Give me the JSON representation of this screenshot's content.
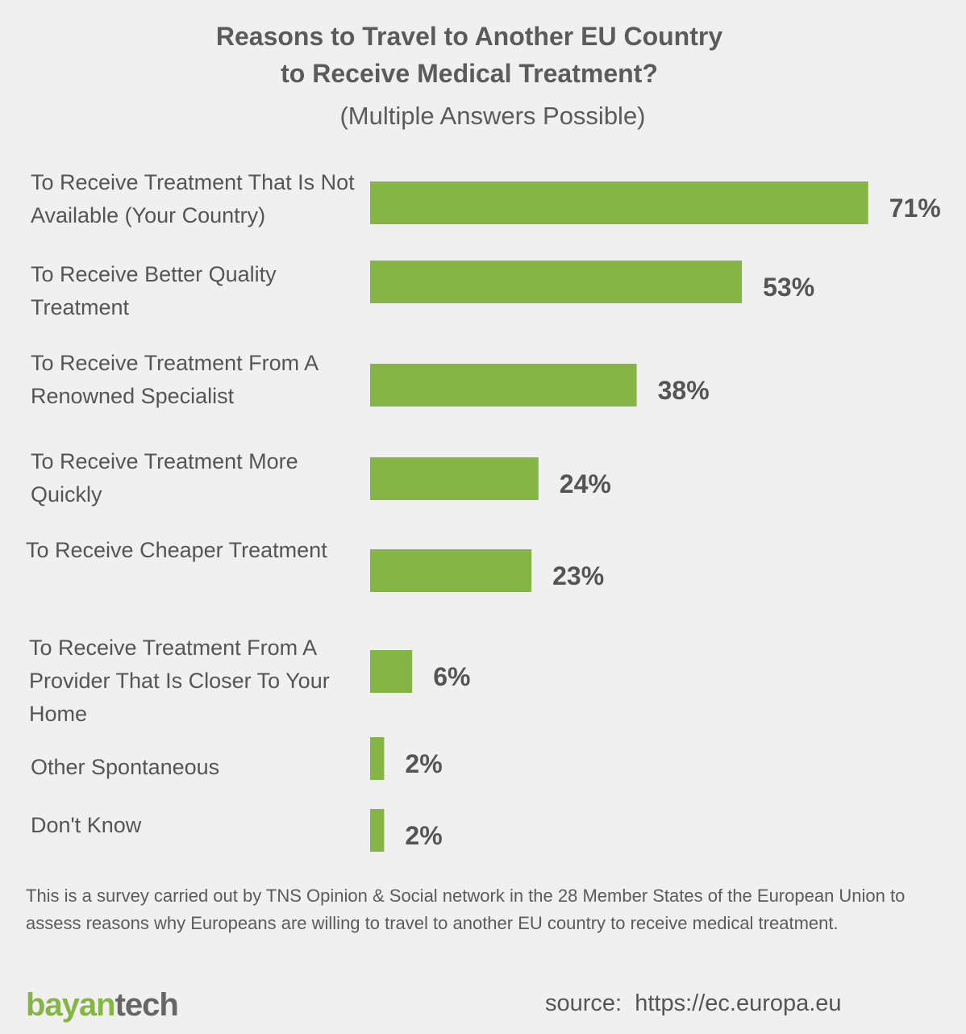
{
  "header": {
    "title_line1": "Reasons to Travel to Another EU Country",
    "title_line2": "to Receive Medical Treatment?",
    "subtitle": "(Multiple Answers Possible)"
  },
  "chart_data": {
    "type": "bar",
    "orientation": "horizontal",
    "title": "Reasons to Travel to Another EU Country to Receive Medical Treatment?",
    "subtitle": "(Multiple Answers Possible)",
    "categories": [
      "To Receive Treatment That Is Not Available (Your Country)",
      "To Receive Better Quality Treatment",
      "To Receive Treatment From A Renowned Specialist",
      "To Receive Treatment More Quickly",
      "To Receive Cheaper Treatment",
      "To Receive Treatment From A Provider That Is Closer To Your Home",
      "Other Spontaneous",
      "Don't Know"
    ],
    "values": [
      71,
      53,
      38,
      24,
      23,
      6,
      2,
      2
    ],
    "value_labels": [
      "71%",
      "53%",
      "38%",
      "24%",
      "23%",
      "6%",
      "2%",
      "2%"
    ],
    "unit": "%",
    "bar_color": "#84b545",
    "grid": false,
    "legend": "none"
  },
  "footer": {
    "note": "This is a survey carried out by TNS Opinion & Social network in the 28 Member States of the European Union to assess reasons why Europeans are willing to travel to another EU country to receive medical treatment.",
    "logo_part1": "bayan",
    "logo_part2": "tech",
    "source": "source:  https://ec.europa.eu"
  },
  "colors": {
    "background": "#f0f0f0",
    "bar": "#84b545",
    "text": "#555555"
  }
}
